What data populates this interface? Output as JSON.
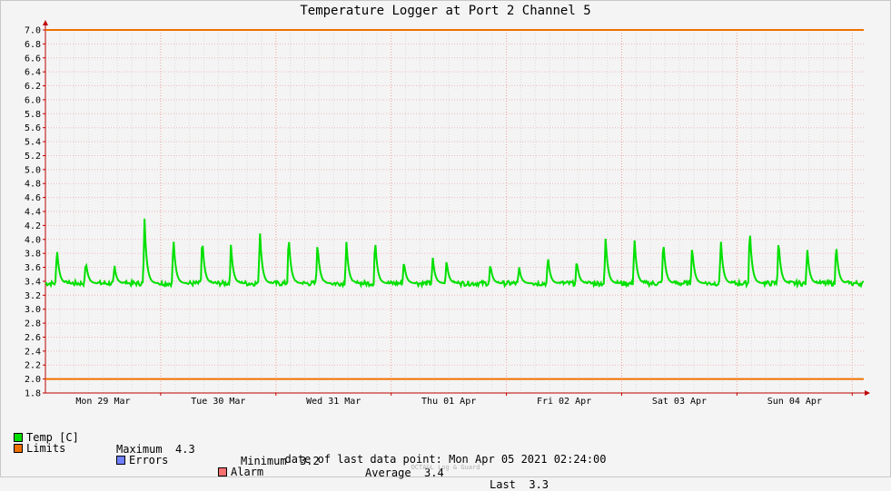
{
  "chart_data": {
    "type": "line",
    "title": "Temperature Logger at Port 2 Channel 5",
    "ylim": [
      1.8,
      7.0
    ],
    "yticks": [
      "7.0",
      "6.8",
      "6.6",
      "6.4",
      "6.2",
      "6.0",
      "5.8",
      "5.6",
      "5.4",
      "5.2",
      "5.0",
      "4.8",
      "4.6",
      "4.4",
      "4.2",
      "4.0",
      "3.8",
      "3.6",
      "3.4",
      "3.2",
      "3.0",
      "2.8",
      "2.6",
      "2.4",
      "2.2",
      "2.0",
      "1.8"
    ],
    "xticks": [
      "Mon 29 Mar",
      "Tue 30 Mar",
      "Wed 31 Mar",
      "Thu 01 Apr",
      "Fri 02 Apr",
      "Sat 03 Apr",
      "Sun 04 Apr"
    ],
    "x_range_days": [
      0,
      7.1
    ],
    "grid": true,
    "limits": {
      "upper": 7.0,
      "lower": 2.0,
      "color": "#f07000"
    },
    "series": [
      {
        "name": "Temp [C]",
        "color": "#00e000",
        "baseline": 3.37,
        "peaks": [
          {
            "day": 0.1,
            "value": 3.88
          },
          {
            "day": 0.35,
            "value": 3.7
          },
          {
            "day": 0.6,
            "value": 3.6
          },
          {
            "day": 0.86,
            "value": 4.28
          },
          {
            "day": 1.11,
            "value": 4.04
          },
          {
            "day": 1.36,
            "value": 4.05
          },
          {
            "day": 1.61,
            "value": 3.92
          },
          {
            "day": 1.86,
            "value": 4.15
          },
          {
            "day": 2.11,
            "value": 4.1
          },
          {
            "day": 2.36,
            "value": 3.98
          },
          {
            "day": 2.61,
            "value": 4.0
          },
          {
            "day": 2.86,
            "value": 4.03
          },
          {
            "day": 3.11,
            "value": 3.7
          },
          {
            "day": 3.36,
            "value": 3.75
          },
          {
            "day": 3.48,
            "value": 3.7
          },
          {
            "day": 3.86,
            "value": 3.65
          },
          {
            "day": 4.11,
            "value": 3.6
          },
          {
            "day": 4.36,
            "value": 3.76
          },
          {
            "day": 4.61,
            "value": 3.7
          },
          {
            "day": 4.86,
            "value": 4.03
          },
          {
            "day": 5.11,
            "value": 4.05
          },
          {
            "day": 5.36,
            "value": 4.02
          },
          {
            "day": 5.61,
            "value": 3.93
          },
          {
            "day": 5.86,
            "value": 4.01
          },
          {
            "day": 6.11,
            "value": 4.2
          },
          {
            "day": 6.36,
            "value": 4.02
          },
          {
            "day": 6.61,
            "value": 3.87
          },
          {
            "day": 6.86,
            "value": 3.95
          }
        ]
      }
    ],
    "stats": {
      "maximum_label": "Maximum",
      "maximum": "4.3",
      "minimum_label": "Minimum",
      "minimum": "3.2",
      "average_label": "Average",
      "average": "3.4",
      "last_label": "Last",
      "last": "3.3"
    },
    "legend": [
      {
        "name": "Temp [C]",
        "color": "#00e000"
      },
      {
        "name": "Limits",
        "color": "#f07000"
      },
      {
        "name": "Errors",
        "color": "#7080ff"
      },
      {
        "name": "Alarm",
        "color": "#ff7070"
      }
    ],
    "footer": "date of last data point:  Mon Apr 05 2021 02:24:00",
    "brand": "OCTA&L Log & Guard"
  }
}
